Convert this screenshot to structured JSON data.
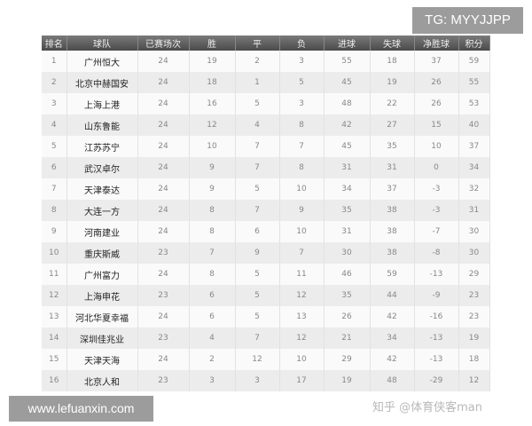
{
  "headers": [
    "排名",
    "球队",
    "已赛场次",
    "胜",
    "平",
    "负",
    "进球",
    "失球",
    "净胜球",
    "积分"
  ],
  "rows": [
    [
      "1",
      "广州恒大",
      "24",
      "19",
      "2",
      "3",
      "55",
      "18",
      "37",
      "59"
    ],
    [
      "2",
      "北京中赫国安",
      "24",
      "18",
      "1",
      "5",
      "45",
      "19",
      "26",
      "55"
    ],
    [
      "3",
      "上海上港",
      "24",
      "16",
      "5",
      "3",
      "48",
      "22",
      "26",
      "53"
    ],
    [
      "4",
      "山东鲁能",
      "24",
      "12",
      "4",
      "8",
      "42",
      "27",
      "15",
      "40"
    ],
    [
      "5",
      "江苏苏宁",
      "24",
      "10",
      "7",
      "7",
      "45",
      "35",
      "10",
      "37"
    ],
    [
      "6",
      "武汉卓尔",
      "24",
      "9",
      "7",
      "8",
      "31",
      "31",
      "0",
      "34"
    ],
    [
      "7",
      "天津泰达",
      "24",
      "9",
      "5",
      "10",
      "34",
      "37",
      "-3",
      "32"
    ],
    [
      "8",
      "大连一方",
      "24",
      "8",
      "7",
      "9",
      "35",
      "38",
      "-3",
      "31"
    ],
    [
      "9",
      "河南建业",
      "24",
      "8",
      "6",
      "10",
      "31",
      "38",
      "-7",
      "30"
    ],
    [
      "10",
      "重庆斯威",
      "23",
      "7",
      "9",
      "7",
      "30",
      "38",
      "-8",
      "30"
    ],
    [
      "11",
      "广州富力",
      "24",
      "8",
      "5",
      "11",
      "46",
      "59",
      "-13",
      "29"
    ],
    [
      "12",
      "上海申花",
      "23",
      "6",
      "5",
      "12",
      "35",
      "44",
      "-9",
      "23"
    ],
    [
      "13",
      "河北华夏幸福",
      "24",
      "6",
      "5",
      "13",
      "26",
      "42",
      "-16",
      "23"
    ],
    [
      "14",
      "深圳佳兆业",
      "23",
      "4",
      "7",
      "12",
      "21",
      "34",
      "-13",
      "19"
    ],
    [
      "15",
      "天津天海",
      "24",
      "2",
      "12",
      "10",
      "29",
      "42",
      "-13",
      "18"
    ],
    [
      "16",
      "北京人和",
      "23",
      "3",
      "3",
      "17",
      "19",
      "48",
      "-29",
      "12"
    ]
  ],
  "watermarks": {
    "tg": "TG: MYYJJPP",
    "site": "www.lefuanxin.com",
    "zhihu": "知乎 @体育侠客man"
  }
}
